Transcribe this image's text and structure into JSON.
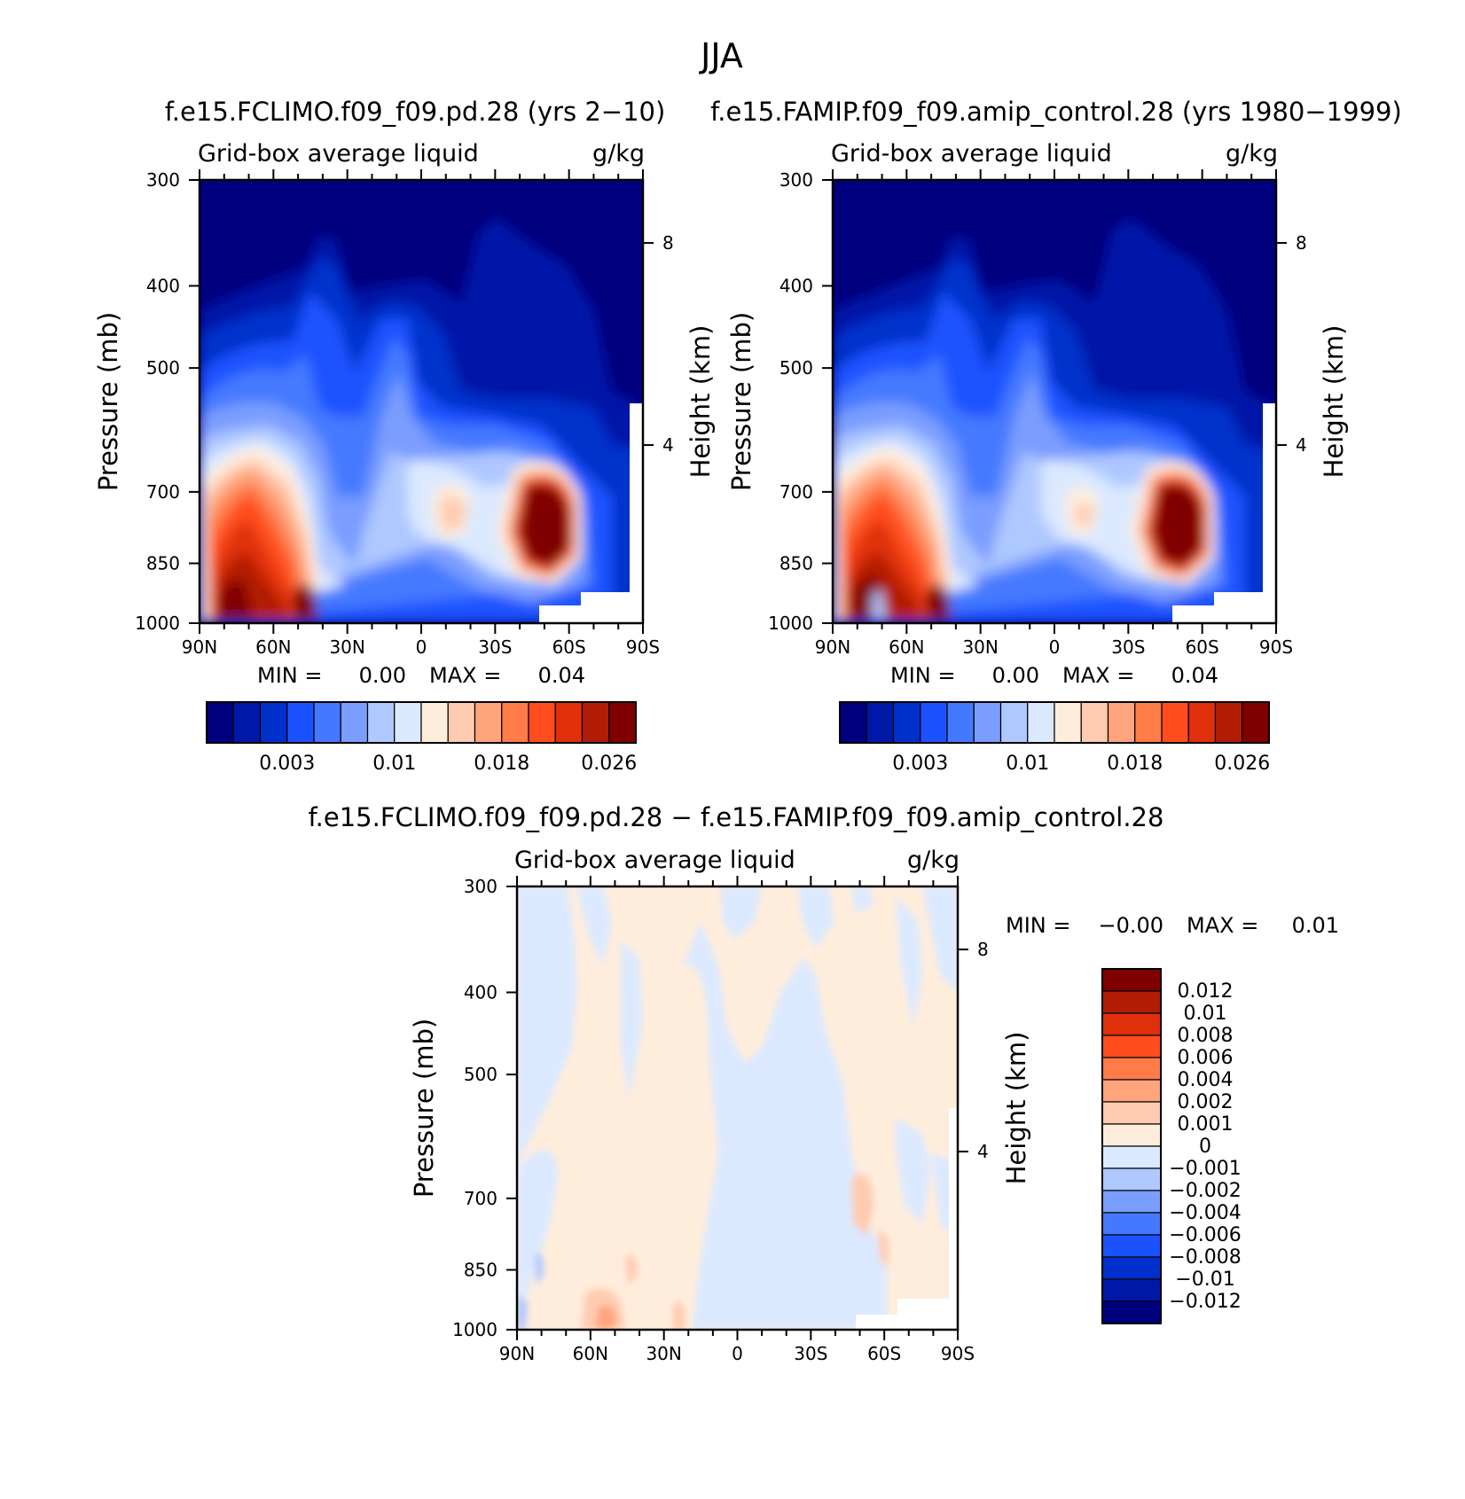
{
  "figure_title": "JJA",
  "chart_data": [
    {
      "id": "p1",
      "type": "heatmap",
      "title": "f.e15.FCLIMO.f09_f09.pd.28 (yrs 2-10)",
      "subtitle": "Grid-box average liquid",
      "units": "g/kg",
      "ylabel": "Pressure (mb)",
      "ylabel2": "Height (km)",
      "x_ticks": [
        "90N",
        "60N",
        "30N",
        "0",
        "30S",
        "60S",
        "90S"
      ],
      "y_ticks": [
        300,
        400,
        500,
        700,
        850,
        1000
      ],
      "y2_ticks": [
        8,
        4
      ],
      "min_label": "MIN =",
      "min_value": "0.00",
      "max_label": "MAX =",
      "max_value": "0.04",
      "colorbar": {
        "orientation": "horizontal",
        "colors": [
          "#00007f",
          "#0018a8",
          "#0030cc",
          "#1a52ff",
          "#4479ff",
          "#7a9dff",
          "#afc8ff",
          "#dbe9ff",
          "#ffeddc",
          "#ffcbb0",
          "#ffa47d",
          "#ff7b48",
          "#ff4d1d",
          "#e0300b",
          "#b31c05",
          "#800000"
        ],
        "labels": [
          "0.003",
          "0.01",
          "0.018",
          "0.026"
        ]
      }
    },
    {
      "id": "p2",
      "type": "heatmap",
      "title": "f.e15.FAMIP.f09_f09.amip_control.28 (yrs 1980-1999)",
      "subtitle": "Grid-box average liquid",
      "units": "g/kg",
      "ylabel": "Pressure (mb)",
      "ylabel2": "Height (km)",
      "x_ticks": [
        "90N",
        "60N",
        "30N",
        "0",
        "30S",
        "60S",
        "90S"
      ],
      "y_ticks": [
        300,
        400,
        500,
        700,
        850,
        1000
      ],
      "y2_ticks": [
        8,
        4
      ],
      "min_label": "MIN =",
      "min_value": "0.00",
      "max_label": "MAX =",
      "max_value": "0.04",
      "colorbar": {
        "orientation": "horizontal",
        "colors": [
          "#00007f",
          "#0018a8",
          "#0030cc",
          "#1a52ff",
          "#4479ff",
          "#7a9dff",
          "#afc8ff",
          "#dbe9ff",
          "#ffeddc",
          "#ffcbb0",
          "#ffa47d",
          "#ff7b48",
          "#ff4d1d",
          "#e0300b",
          "#b31c05",
          "#800000"
        ],
        "labels": [
          "0.003",
          "0.01",
          "0.018",
          "0.026"
        ]
      }
    },
    {
      "id": "p3",
      "type": "heatmap",
      "title": "f.e15.FCLIMO.f09_f09.pd.28 - f.e15.FAMIP.f09_f09.amip_control.28",
      "subtitle": "Grid-box average liquid",
      "units": "g/kg",
      "ylabel": "Pressure (mb)",
      "ylabel2": "Height (km)",
      "x_ticks": [
        "90N",
        "60N",
        "30N",
        "0",
        "30S",
        "60S",
        "90S"
      ],
      "y_ticks": [
        300,
        400,
        500,
        700,
        850,
        1000
      ],
      "y2_ticks": [
        8,
        4
      ],
      "min_label": "MIN =",
      "min_value": "-0.00",
      "max_label": "MAX =",
      "max_value": "0.01",
      "colorbar": {
        "orientation": "vertical",
        "colors": [
          "#00007f",
          "#0018a8",
          "#0030cc",
          "#1a52ff",
          "#4479ff",
          "#7a9dff",
          "#afc8ff",
          "#dbe9ff",
          "#ffeddc",
          "#ffcbb0",
          "#ffa47d",
          "#ff7b48",
          "#ff4d1d",
          "#e0300b",
          "#b31c05",
          "#800000"
        ],
        "labels": [
          "0.012",
          "0.01",
          "0.008",
          "0.006",
          "0.004",
          "0.002",
          "0.001",
          "0",
          "-0.001",
          "-0.002",
          "-0.004",
          "-0.006",
          "-0.008",
          "-0.01",
          "-0.012"
        ]
      }
    }
  ]
}
